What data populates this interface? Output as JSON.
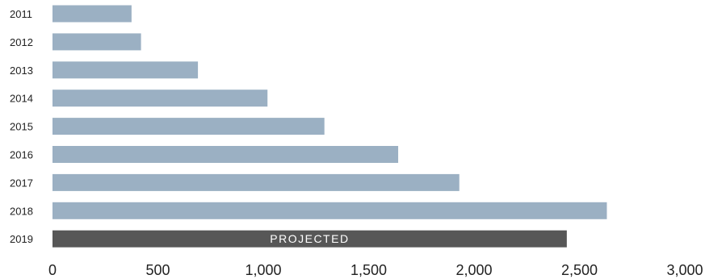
{
  "chart_data": {
    "type": "bar",
    "orientation": "horizontal",
    "categories": [
      "2011",
      "2012",
      "2013",
      "2014",
      "2015",
      "2016",
      "2017",
      "2018",
      "2019"
    ],
    "values": [
      375,
      420,
      690,
      1020,
      1290,
      1640,
      1930,
      2630,
      2440
    ],
    "xlim": [
      0,
      3000
    ],
    "x_ticks": [
      {
        "value": 0,
        "label": "0"
      },
      {
        "value": 500,
        "label": "500"
      },
      {
        "value": 1000,
        "label": "1,000"
      },
      {
        "value": 1500,
        "label": "1,500"
      },
      {
        "value": 2000,
        "label": "2,000"
      },
      {
        "value": 2500,
        "label": "2,500"
      },
      {
        "value": 3000,
        "label": "3,000"
      }
    ],
    "annotation": {
      "category": "2019",
      "text": "PROJECTED"
    },
    "grid": false,
    "colors": {
      "bar": "#9BB0C3",
      "projected_bar": "#575757",
      "text": "#222222"
    }
  }
}
